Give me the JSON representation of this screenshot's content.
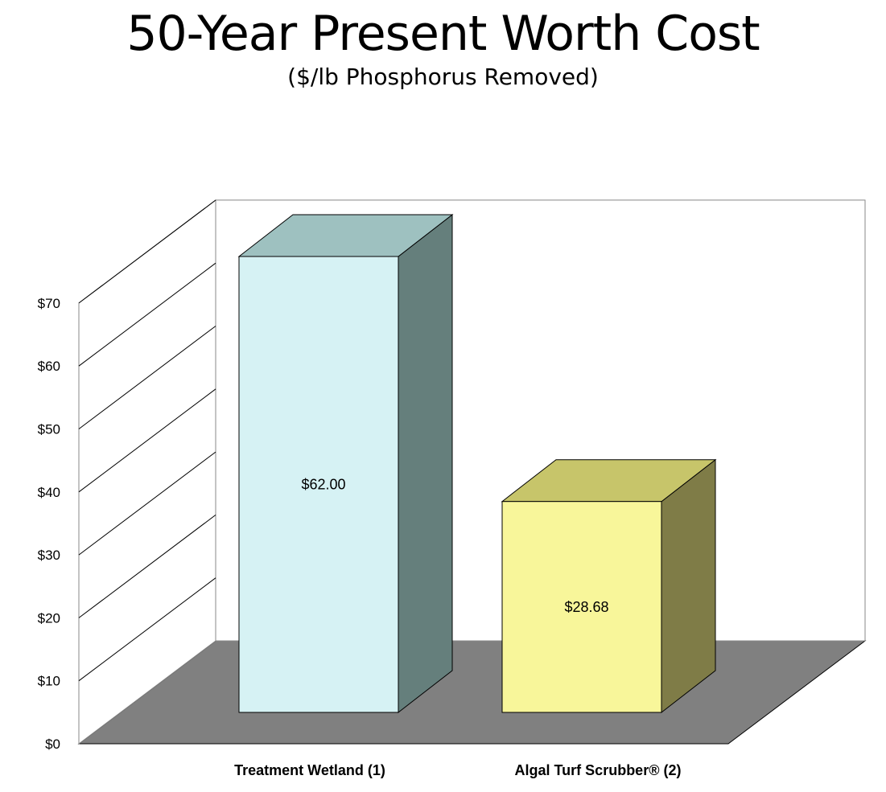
{
  "chart_data": {
    "type": "bar",
    "title": "50-Year Present Worth Cost",
    "subtitle": "($/lb Phosphorus Removed)",
    "categories": [
      "Treatment Wetland (1)",
      "Algal Turf Scrubber® (2)"
    ],
    "values": [
      62.0,
      28.68
    ],
    "data_labels": [
      "$62.00",
      "$28.68"
    ],
    "yticks": [
      "$0",
      "$10",
      "$20",
      "$30",
      "$40",
      "$50",
      "$60",
      "$70"
    ],
    "ylim": [
      0,
      70
    ],
    "grid": true,
    "legend": "none",
    "colors": {
      "bar1_front": "#d6f2f4",
      "bar1_side": "#657f7c",
      "bar1_top": "#9ec1c0",
      "bar2_front": "#f8f69a",
      "bar2_side": "#7f7c47",
      "bar2_top": "#c7c56a",
      "floor": "#808080"
    }
  }
}
